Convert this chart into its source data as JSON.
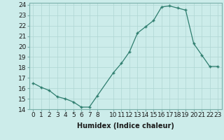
{
  "x": [
    0,
    1,
    2,
    3,
    4,
    5,
    6,
    7,
    8,
    10,
    11,
    12,
    13,
    14,
    15,
    16,
    17,
    18,
    19,
    20,
    21,
    22,
    23
  ],
  "y": [
    16.5,
    16.1,
    15.8,
    15.2,
    15.0,
    14.7,
    14.2,
    14.2,
    15.3,
    17.5,
    18.4,
    19.5,
    21.3,
    21.9,
    22.5,
    23.8,
    23.9,
    23.7,
    23.5,
    20.3,
    19.2,
    18.1,
    18.1
  ],
  "xlabel": "Humidex (Indice chaleur)",
  "xlim": [
    -0.5,
    23.5
  ],
  "ylim": [
    14,
    24.2
  ],
  "yticks": [
    14,
    15,
    16,
    17,
    18,
    19,
    20,
    21,
    22,
    23,
    24
  ],
  "xticks": [
    0,
    1,
    2,
    3,
    4,
    5,
    6,
    7,
    8,
    10,
    11,
    12,
    13,
    14,
    15,
    16,
    17,
    18,
    19,
    20,
    21,
    22,
    23
  ],
  "line_color": "#2e7d6e",
  "marker": "+",
  "bg_color": "#ccecea",
  "grid_color": "#aed6d3",
  "label_fontsize": 7,
  "tick_fontsize": 6.5
}
